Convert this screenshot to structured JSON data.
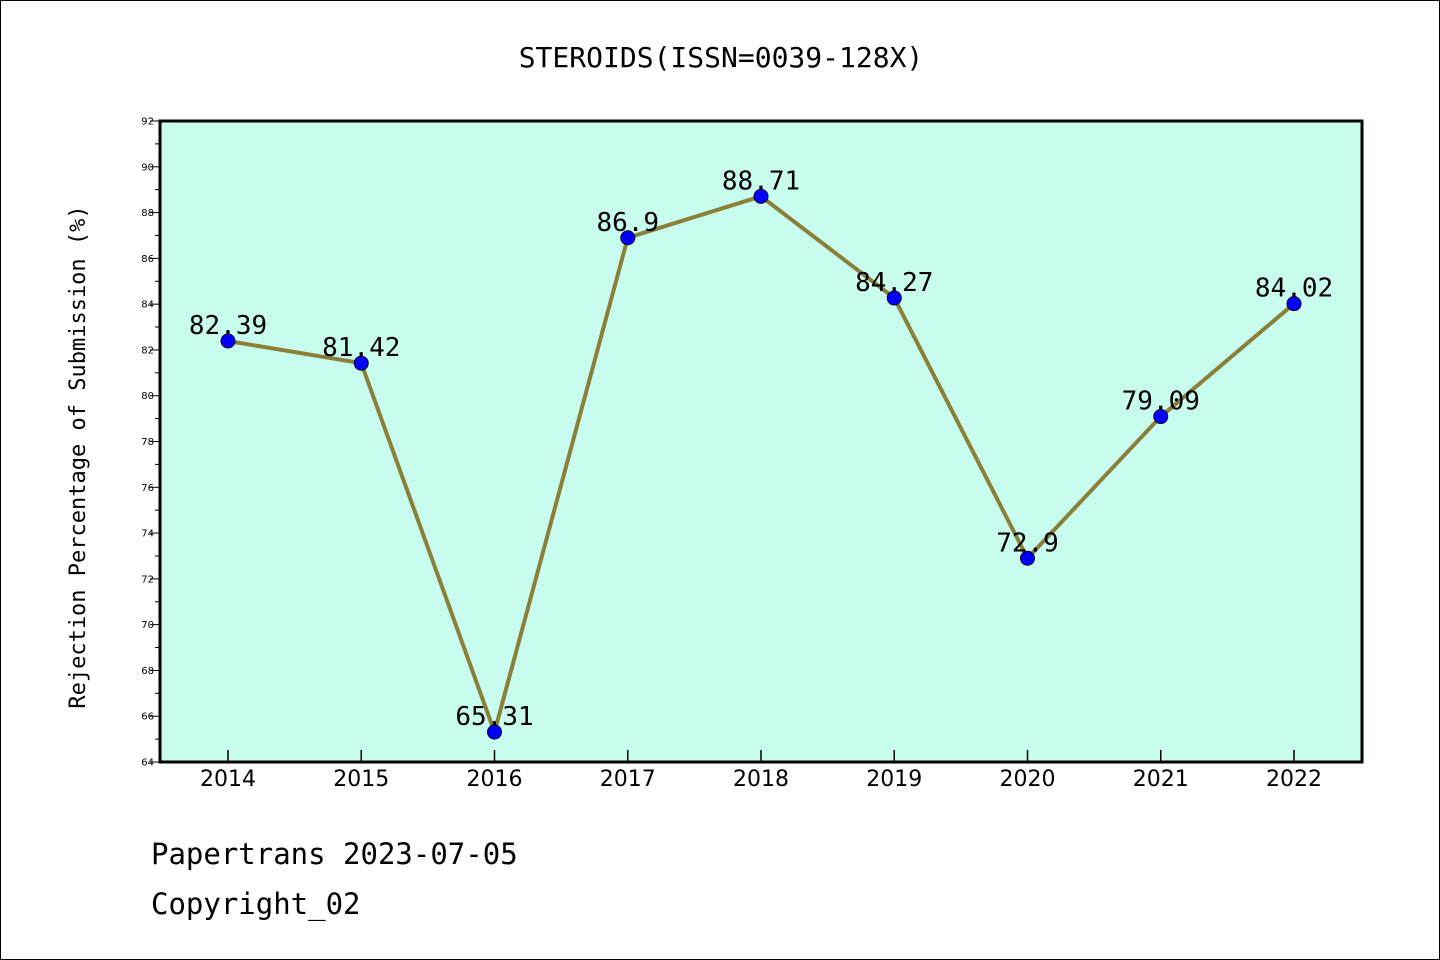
{
  "chart_data": {
    "type": "line",
    "title": "STEROIDS(ISSN=0039-128X)",
    "xlabel": "",
    "ylabel": "Rejection Percentage of Submission (%)",
    "categories": [
      "2014",
      "2015",
      "2016",
      "2017",
      "2018",
      "2019",
      "2020",
      "2021",
      "2022"
    ],
    "values": [
      82.39,
      81.42,
      65.31,
      86.9,
      88.71,
      84.27,
      72.9,
      79.09,
      84.02
    ],
    "data_labels": [
      "82.39",
      "81.42",
      "65.31",
      "86.9",
      "88.71",
      "84.27",
      "72.9",
      "79.09",
      "84.02"
    ],
    "ylim": [
      64,
      92
    ],
    "yticks": [
      "64",
      "66",
      "68",
      "70",
      "72",
      "74",
      "76",
      "78",
      "80",
      "82",
      "84",
      "86",
      "88",
      "90",
      "92"
    ],
    "grid": false,
    "legend": "none",
    "colors": {
      "plot_background": "#c8fcef",
      "line": "#8a8038",
      "marker": "#0000ff"
    }
  },
  "footer": {
    "line1": "Papertrans 2023-07-05",
    "line2": "Copyright_02"
  }
}
